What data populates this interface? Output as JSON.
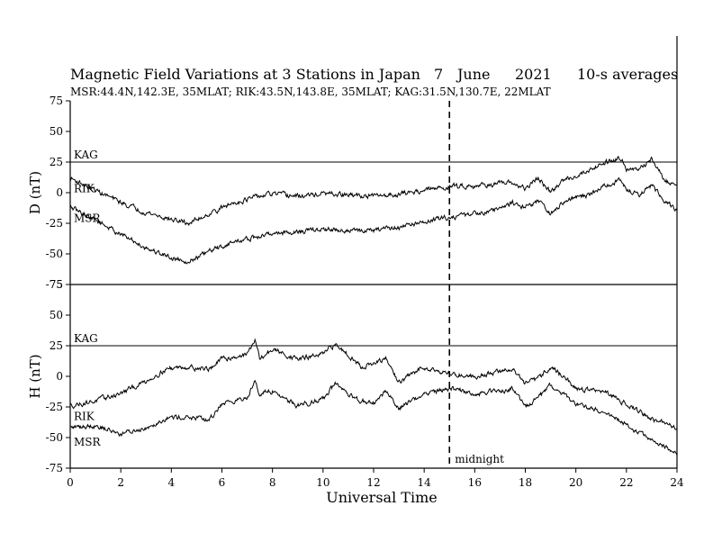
{
  "chart_data": {
    "type": "line",
    "title_parts": [
      "Magnetic Field Variations at 3 Stations in Japan",
      "7",
      "June",
      "2021",
      "10-s averages"
    ],
    "subtitle": "MSR:44.4N,142.3E, 35MLAT;  RIK:43.5N,143.8E, 35MLAT;  KAG:31.5N,130.7E, 22MLAT",
    "xlabel": "Universal Time",
    "xlim": [
      0,
      24
    ],
    "xticks": [
      0,
      2,
      4,
      6,
      8,
      10,
      12,
      14,
      16,
      18,
      20,
      22,
      24
    ],
    "midnight": {
      "x": 15,
      "label": "midnight"
    },
    "panels": [
      {
        "name": "D",
        "ylabel": "D (nT)",
        "ylim": [
          -75,
          75
        ],
        "yticks": [
          75,
          50,
          25,
          0,
          -25,
          -50,
          -75
        ],
        "series": [
          {
            "name": "KAG",
            "type": "flat",
            "value": 25
          },
          {
            "name": "RIK",
            "x": [
              0,
              1,
              2,
              3,
              4,
              4.7,
              5.5,
              6.5,
              7.5,
              8,
              9,
              10,
              11,
              12,
              13,
              14,
              15,
              16,
              17,
              17.5,
              18,
              18.5,
              19,
              19.5,
              20,
              20.5,
              21,
              21.5,
              21.8,
              22,
              22.5,
              23,
              23.5,
              24
            ],
            "values": [
              12,
              2,
              -8,
              -16,
              -22,
              -25,
              -17,
              -8,
              -3,
              -1,
              -3,
              -1,
              -2,
              -3,
              -1,
              2,
              5,
              6,
              7,
              8,
              3,
              12,
              0,
              10,
              14,
              18,
              24,
              27,
              29,
              20,
              18,
              28,
              10,
              6
            ]
          },
          {
            "name": "MSR",
            "x": [
              0,
              1,
              2,
              3,
              4,
              4.7,
              5.5,
              6.5,
              7.5,
              8,
              9,
              10,
              11,
              12,
              13,
              14,
              15,
              16,
              17,
              17.5,
              18,
              18.5,
              19,
              19.5,
              20,
              20.5,
              21,
              21.5,
              21.8,
              22,
              22.5,
              23,
              23.5,
              24
            ],
            "values": [
              -12,
              -22,
              -34,
              -45,
              -53,
              -56,
              -48,
              -40,
              -36,
              -33,
              -32,
              -30,
              -31,
              -31,
              -28,
              -24,
              -20,
              -17,
              -13,
              -8,
              -12,
              -6,
              -18,
              -8,
              -4,
              -2,
              4,
              8,
              10,
              2,
              -2,
              6,
              -6,
              -14
            ]
          }
        ]
      },
      {
        "name": "H",
        "ylabel": "H (nT)",
        "ylim": [
          -75,
          75
        ],
        "yticks": [
          75,
          50,
          25,
          0,
          -25,
          -50,
          -75
        ],
        "series": [
          {
            "name": "KAG",
            "type": "flat",
            "value": 25
          },
          {
            "name": "RIK",
            "x": [
              0,
              1,
              2,
              3,
              3.8,
              4.5,
              5.5,
              6,
              7,
              7.3,
              7.5,
              8,
              9,
              10,
              10.5,
              11,
              11.5,
              12,
              12.5,
              13,
              14,
              15,
              16,
              17,
              17.5,
              18,
              18.5,
              19,
              19.5,
              20,
              21,
              22,
              23,
              24
            ],
            "values": [
              -24,
              -20,
              -14,
              -4,
              6,
              8,
              6,
              14,
              18,
              30,
              14,
              22,
              14,
              18,
              26,
              18,
              8,
              10,
              14,
              -5,
              8,
              2,
              0,
              4,
              6,
              -6,
              -2,
              8,
              0,
              -10,
              -12,
              -22,
              -35,
              -42
            ]
          },
          {
            "name": "MSR",
            "x": [
              0,
              1,
              2,
              3,
              3.8,
              4.5,
              5.5,
              6,
              7,
              7.3,
              7.5,
              8,
              9,
              10,
              10.5,
              11,
              11.5,
              12,
              12.5,
              13,
              14,
              15,
              16,
              17,
              17.5,
              18,
              18.5,
              19,
              19.5,
              20,
              21,
              22,
              23,
              24
            ],
            "values": [
              -42,
              -40,
              -47,
              -42,
              -34,
              -33,
              -36,
              -22,
              -18,
              -2,
              -14,
              -12,
              -24,
              -18,
              -6,
              -16,
              -20,
              -22,
              -12,
              -26,
              -14,
              -10,
              -14,
              -12,
              -10,
              -24,
              -18,
              -8,
              -15,
              -22,
              -28,
              -40,
              -52,
              -64
            ]
          }
        ]
      }
    ]
  }
}
